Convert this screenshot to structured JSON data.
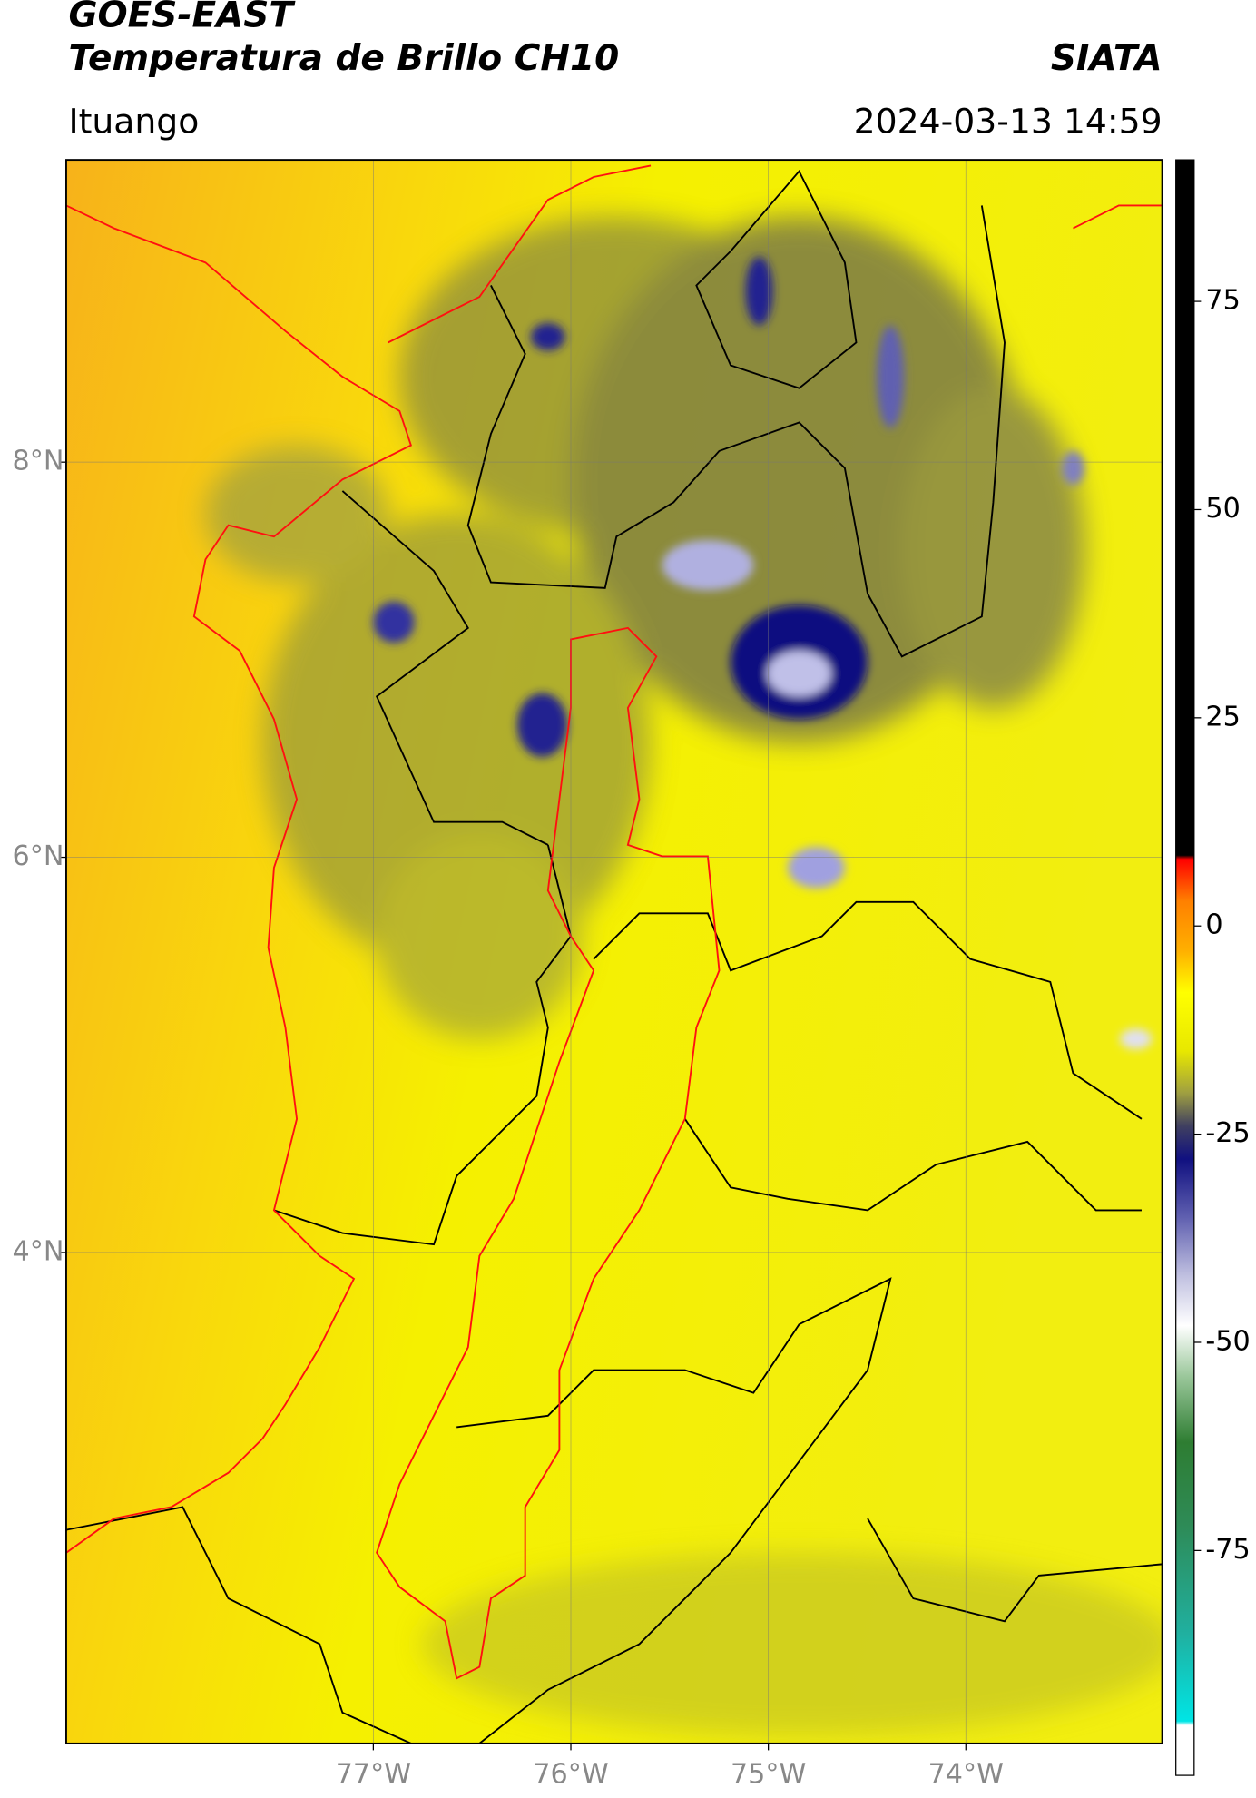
{
  "header": {
    "title": "GOES-EAST",
    "subtitle": "Temperatura de Brillo CH10",
    "source": "SIATA",
    "location": "Ituango",
    "timestamp": "2024-03-13 14:59"
  },
  "map": {
    "xlim": [
      -78.555,
      -73.006
    ],
    "ylim": [
      1.515,
      9.53
    ],
    "xticks": [
      {
        "value": -77,
        "label": "77°W"
      },
      {
        "value": -76,
        "label": "76°W"
      },
      {
        "value": -75,
        "label": "75°W"
      },
      {
        "value": -74,
        "label": "74°W"
      }
    ],
    "yticks": [
      {
        "value": 4,
        "label": "4°N"
      },
      {
        "value": 6,
        "label": "6°N"
      },
      {
        "value": 8,
        "label": "8°N"
      }
    ],
    "grid": true
  },
  "colorbar": {
    "ylim": [
      -102,
      92
    ],
    "yticks": [
      -75,
      -50,
      -25,
      0,
      25,
      50,
      75
    ],
    "stops": [
      {
        "value": -102,
        "color": "#ffffff"
      },
      {
        "value": -96,
        "color": "#ffffff"
      },
      {
        "value": -95.5,
        "color": "#00e5e5"
      },
      {
        "value": -85,
        "color": "#20b0a0"
      },
      {
        "value": -72,
        "color": "#2e8b57"
      },
      {
        "value": -62,
        "color": "#2e7d32"
      },
      {
        "value": -54,
        "color": "#9cc89c"
      },
      {
        "value": -48,
        "color": "#ffffff"
      },
      {
        "value": -42,
        "color": "#c0c0e0"
      },
      {
        "value": -35,
        "color": "#6060b0"
      },
      {
        "value": -28,
        "color": "#101080"
      },
      {
        "value": -24,
        "color": "#404060"
      },
      {
        "value": -20,
        "color": "#a0a040"
      },
      {
        "value": -15,
        "color": "#e8e800"
      },
      {
        "value": -8,
        "color": "#ffff00"
      },
      {
        "value": -3,
        "color": "#ffb000"
      },
      {
        "value": 3,
        "color": "#ff8000"
      },
      {
        "value": 8,
        "color": "#ff0000"
      },
      {
        "value": 8.5,
        "color": "#000000"
      },
      {
        "value": 92,
        "color": "#000000"
      }
    ]
  }
}
